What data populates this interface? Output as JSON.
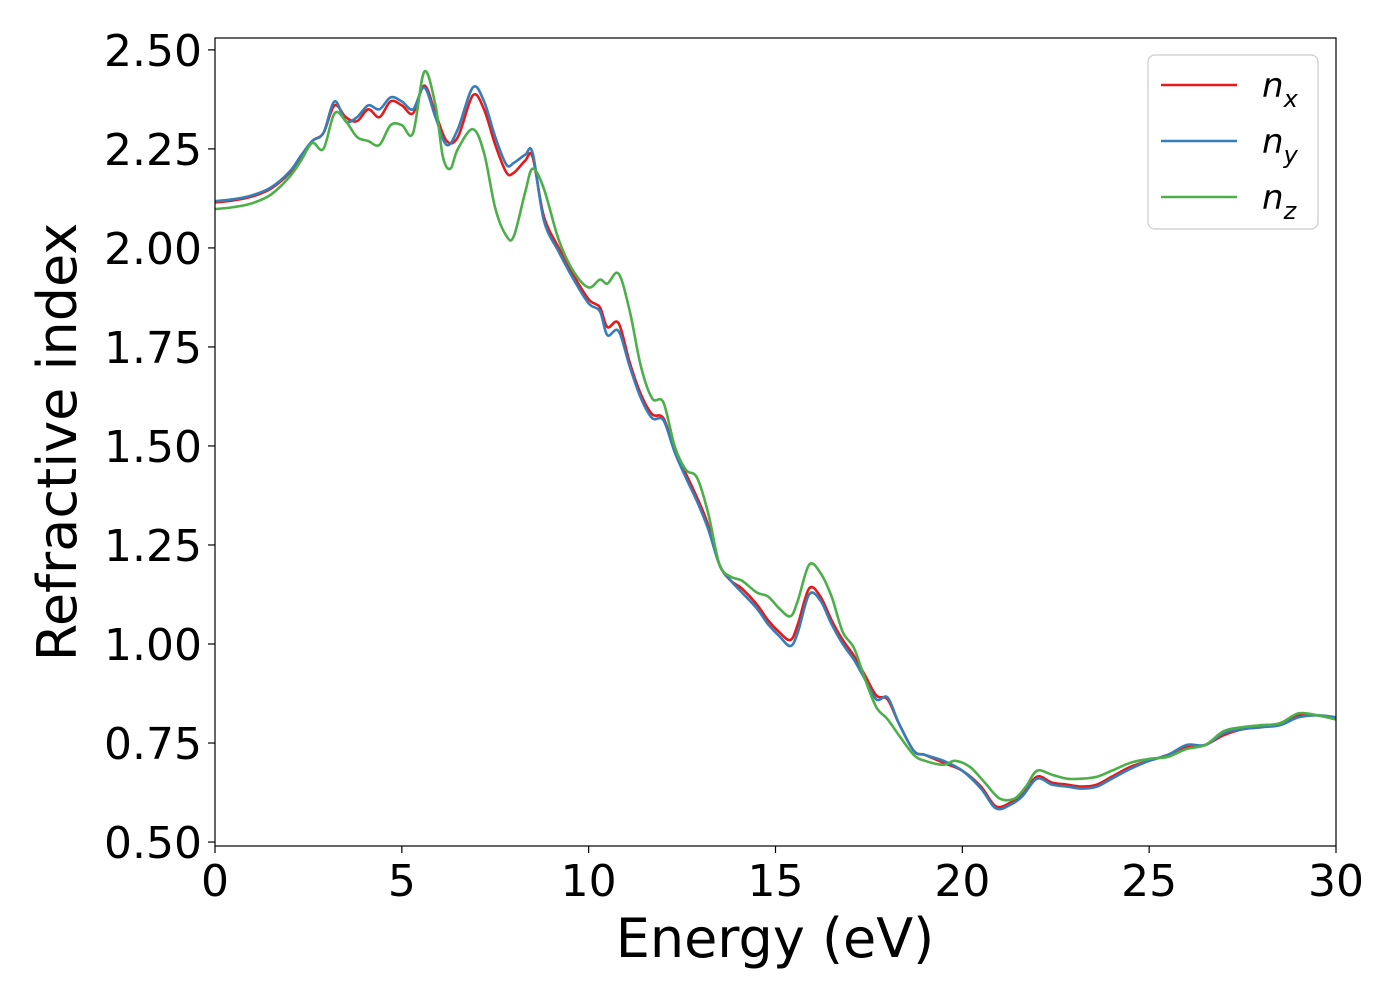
{
  "chart_data": {
    "type": "line",
    "xlabel": "Energy (eV)",
    "ylabel": "Refractive index",
    "xlim": [
      0,
      30
    ],
    "ylim": [
      0.49,
      2.53
    ],
    "xticks": [
      0,
      5,
      10,
      15,
      20,
      25,
      30
    ],
    "xtick_labels": [
      "0",
      "5",
      "10",
      "15",
      "20",
      "25",
      "30"
    ],
    "yticks": [
      0.5,
      0.75,
      1.0,
      1.25,
      1.5,
      1.75,
      2.0,
      2.25,
      2.5
    ],
    "ytick_labels": [
      "0.50",
      "0.75",
      "1.00",
      "1.25",
      "1.50",
      "1.75",
      "2.00",
      "2.25",
      "2.50"
    ],
    "grid": false,
    "legend_position": "top-right",
    "series": [
      {
        "name": "n_x",
        "legend_base": "n",
        "legend_sub": "x",
        "color": "#e41a1c",
        "points": [
          [
            0,
            2.115
          ],
          [
            0.5,
            2.12
          ],
          [
            1,
            2.13
          ],
          [
            1.5,
            2.15
          ],
          [
            2,
            2.19
          ],
          [
            2.3,
            2.23
          ],
          [
            2.6,
            2.27
          ],
          [
            2.9,
            2.29
          ],
          [
            3.2,
            2.36
          ],
          [
            3.5,
            2.33
          ],
          [
            3.8,
            2.32
          ],
          [
            4.1,
            2.35
          ],
          [
            4.4,
            2.33
          ],
          [
            4.7,
            2.37
          ],
          [
            5.0,
            2.36
          ],
          [
            5.3,
            2.34
          ],
          [
            5.6,
            2.41
          ],
          [
            5.9,
            2.34
          ],
          [
            6.2,
            2.27
          ],
          [
            6.5,
            2.28
          ],
          [
            6.9,
            2.385
          ],
          [
            7.2,
            2.35
          ],
          [
            7.5,
            2.26
          ],
          [
            7.8,
            2.19
          ],
          [
            8.0,
            2.19
          ],
          [
            8.3,
            2.22
          ],
          [
            8.5,
            2.23
          ],
          [
            8.8,
            2.08
          ],
          [
            9.2,
            2.0
          ],
          [
            9.6,
            1.93
          ],
          [
            10.0,
            1.87
          ],
          [
            10.3,
            1.85
          ],
          [
            10.5,
            1.8
          ],
          [
            10.8,
            1.81
          ],
          [
            11.1,
            1.71
          ],
          [
            11.4,
            1.63
          ],
          [
            11.7,
            1.58
          ],
          [
            12.0,
            1.57
          ],
          [
            12.3,
            1.49
          ],
          [
            12.6,
            1.43
          ],
          [
            12.9,
            1.37
          ],
          [
            13.2,
            1.3
          ],
          [
            13.5,
            1.2
          ],
          [
            13.8,
            1.16
          ],
          [
            14.1,
            1.14
          ],
          [
            14.5,
            1.1
          ],
          [
            14.8,
            1.06
          ],
          [
            15.1,
            1.03
          ],
          [
            15.4,
            1.01
          ],
          [
            15.6,
            1.05
          ],
          [
            15.9,
            1.14
          ],
          [
            16.2,
            1.12
          ],
          [
            16.5,
            1.06
          ],
          [
            16.8,
            1.01
          ],
          [
            17.1,
            0.97
          ],
          [
            17.4,
            0.92
          ],
          [
            17.7,
            0.87
          ],
          [
            18.0,
            0.86
          ],
          [
            18.3,
            0.8
          ],
          [
            18.7,
            0.73
          ],
          [
            19.0,
            0.72
          ],
          [
            19.5,
            0.7
          ],
          [
            20.0,
            0.68
          ],
          [
            20.5,
            0.64
          ],
          [
            20.9,
            0.59
          ],
          [
            21.3,
            0.6
          ],
          [
            21.6,
            0.62
          ],
          [
            22.0,
            0.665
          ],
          [
            22.4,
            0.65
          ],
          [
            22.8,
            0.645
          ],
          [
            23.2,
            0.64
          ],
          [
            23.6,
            0.645
          ],
          [
            24.0,
            0.665
          ],
          [
            24.5,
            0.69
          ],
          [
            25.0,
            0.705
          ],
          [
            25.5,
            0.72
          ],
          [
            26.0,
            0.74
          ],
          [
            26.5,
            0.745
          ],
          [
            27.0,
            0.77
          ],
          [
            27.5,
            0.785
          ],
          [
            28.0,
            0.79
          ],
          [
            28.5,
            0.8
          ],
          [
            29.0,
            0.82
          ],
          [
            29.5,
            0.82
          ],
          [
            30.0,
            0.81
          ]
        ]
      },
      {
        "name": "n_y",
        "legend_base": "n",
        "legend_sub": "y",
        "color": "#377eb8",
        "points": [
          [
            0,
            2.118
          ],
          [
            0.5,
            2.123
          ],
          [
            1,
            2.133
          ],
          [
            1.5,
            2.153
          ],
          [
            2,
            2.193
          ],
          [
            2.3,
            2.233
          ],
          [
            2.6,
            2.27
          ],
          [
            2.9,
            2.29
          ],
          [
            3.2,
            2.37
          ],
          [
            3.5,
            2.32
          ],
          [
            3.8,
            2.33
          ],
          [
            4.1,
            2.36
          ],
          [
            4.4,
            2.35
          ],
          [
            4.7,
            2.38
          ],
          [
            5.0,
            2.37
          ],
          [
            5.3,
            2.35
          ],
          [
            5.6,
            2.405
          ],
          [
            5.9,
            2.33
          ],
          [
            6.2,
            2.26
          ],
          [
            6.5,
            2.3
          ],
          [
            6.9,
            2.405
          ],
          [
            7.2,
            2.37
          ],
          [
            7.5,
            2.28
          ],
          [
            7.8,
            2.21
          ],
          [
            8.0,
            2.215
          ],
          [
            8.3,
            2.235
          ],
          [
            8.5,
            2.24
          ],
          [
            8.8,
            2.07
          ],
          [
            9.2,
            1.99
          ],
          [
            9.6,
            1.92
          ],
          [
            10.0,
            1.86
          ],
          [
            10.3,
            1.84
          ],
          [
            10.5,
            1.78
          ],
          [
            10.8,
            1.79
          ],
          [
            11.1,
            1.7
          ],
          [
            11.4,
            1.62
          ],
          [
            11.7,
            1.57
          ],
          [
            12.0,
            1.565
          ],
          [
            12.3,
            1.485
          ],
          [
            12.6,
            1.42
          ],
          [
            12.9,
            1.36
          ],
          [
            13.2,
            1.29
          ],
          [
            13.5,
            1.2
          ],
          [
            13.8,
            1.16
          ],
          [
            14.1,
            1.13
          ],
          [
            14.5,
            1.09
          ],
          [
            14.8,
            1.05
          ],
          [
            15.1,
            1.02
          ],
          [
            15.4,
            0.995
          ],
          [
            15.6,
            1.03
          ],
          [
            15.9,
            1.125
          ],
          [
            16.2,
            1.11
          ],
          [
            16.5,
            1.05
          ],
          [
            16.8,
            1.0
          ],
          [
            17.1,
            0.96
          ],
          [
            17.4,
            0.91
          ],
          [
            17.7,
            0.86
          ],
          [
            18.0,
            0.865
          ],
          [
            18.3,
            0.8
          ],
          [
            18.7,
            0.73
          ],
          [
            19.0,
            0.72
          ],
          [
            19.5,
            0.705
          ],
          [
            20.0,
            0.68
          ],
          [
            20.5,
            0.635
          ],
          [
            20.9,
            0.585
          ],
          [
            21.3,
            0.595
          ],
          [
            21.6,
            0.615
          ],
          [
            22.0,
            0.66
          ],
          [
            22.4,
            0.645
          ],
          [
            22.8,
            0.64
          ],
          [
            23.2,
            0.635
          ],
          [
            23.6,
            0.64
          ],
          [
            24.0,
            0.66
          ],
          [
            24.5,
            0.685
          ],
          [
            25.0,
            0.705
          ],
          [
            25.5,
            0.72
          ],
          [
            26.0,
            0.745
          ],
          [
            26.5,
            0.745
          ],
          [
            27.0,
            0.775
          ],
          [
            27.5,
            0.785
          ],
          [
            28.0,
            0.79
          ],
          [
            28.5,
            0.795
          ],
          [
            29.0,
            0.815
          ],
          [
            29.5,
            0.82
          ],
          [
            30.0,
            0.815
          ]
        ]
      },
      {
        "name": "n_z",
        "legend_base": "n",
        "legend_sub": "z",
        "color": "#4daf4a",
        "points": [
          [
            0,
            2.098
          ],
          [
            0.5,
            2.103
          ],
          [
            1,
            2.113
          ],
          [
            1.5,
            2.135
          ],
          [
            2,
            2.18
          ],
          [
            2.3,
            2.22
          ],
          [
            2.6,
            2.265
          ],
          [
            2.9,
            2.25
          ],
          [
            3.2,
            2.34
          ],
          [
            3.5,
            2.32
          ],
          [
            3.8,
            2.28
          ],
          [
            4.1,
            2.27
          ],
          [
            4.4,
            2.26
          ],
          [
            4.7,
            2.31
          ],
          [
            5.0,
            2.31
          ],
          [
            5.3,
            2.29
          ],
          [
            5.6,
            2.445
          ],
          [
            5.9,
            2.36
          ],
          [
            6.1,
            2.23
          ],
          [
            6.3,
            2.2
          ],
          [
            6.5,
            2.25
          ],
          [
            6.9,
            2.3
          ],
          [
            7.2,
            2.24
          ],
          [
            7.5,
            2.1
          ],
          [
            7.8,
            2.03
          ],
          [
            8.0,
            2.03
          ],
          [
            8.3,
            2.14
          ],
          [
            8.5,
            2.2
          ],
          [
            8.8,
            2.15
          ],
          [
            9.2,
            2.02
          ],
          [
            9.6,
            1.94
          ],
          [
            10.0,
            1.9
          ],
          [
            10.3,
            1.92
          ],
          [
            10.5,
            1.91
          ],
          [
            10.8,
            1.935
          ],
          [
            11.1,
            1.84
          ],
          [
            11.4,
            1.7
          ],
          [
            11.7,
            1.62
          ],
          [
            12.0,
            1.61
          ],
          [
            12.3,
            1.5
          ],
          [
            12.6,
            1.44
          ],
          [
            12.9,
            1.42
          ],
          [
            13.2,
            1.33
          ],
          [
            13.5,
            1.2
          ],
          [
            13.8,
            1.17
          ],
          [
            14.1,
            1.16
          ],
          [
            14.5,
            1.13
          ],
          [
            14.8,
            1.12
          ],
          [
            15.1,
            1.09
          ],
          [
            15.4,
            1.07
          ],
          [
            15.6,
            1.11
          ],
          [
            15.9,
            1.2
          ],
          [
            16.2,
            1.18
          ],
          [
            16.5,
            1.12
          ],
          [
            16.8,
            1.03
          ],
          [
            17.1,
            0.99
          ],
          [
            17.4,
            0.91
          ],
          [
            17.7,
            0.84
          ],
          [
            18.0,
            0.81
          ],
          [
            18.3,
            0.77
          ],
          [
            18.7,
            0.72
          ],
          [
            19.0,
            0.705
          ],
          [
            19.5,
            0.695
          ],
          [
            19.8,
            0.705
          ],
          [
            20.2,
            0.69
          ],
          [
            20.6,
            0.65
          ],
          [
            21.0,
            0.61
          ],
          [
            21.4,
            0.61
          ],
          [
            21.7,
            0.64
          ],
          [
            22.0,
            0.68
          ],
          [
            22.4,
            0.67
          ],
          [
            22.8,
            0.66
          ],
          [
            23.2,
            0.66
          ],
          [
            23.6,
            0.665
          ],
          [
            24.0,
            0.68
          ],
          [
            24.5,
            0.7
          ],
          [
            25.0,
            0.71
          ],
          [
            25.5,
            0.715
          ],
          [
            26.0,
            0.735
          ],
          [
            26.5,
            0.745
          ],
          [
            27.0,
            0.78
          ],
          [
            27.5,
            0.79
          ],
          [
            28.0,
            0.795
          ],
          [
            28.5,
            0.8
          ],
          [
            29.0,
            0.825
          ],
          [
            29.5,
            0.82
          ],
          [
            30.0,
            0.81
          ]
        ]
      }
    ]
  }
}
